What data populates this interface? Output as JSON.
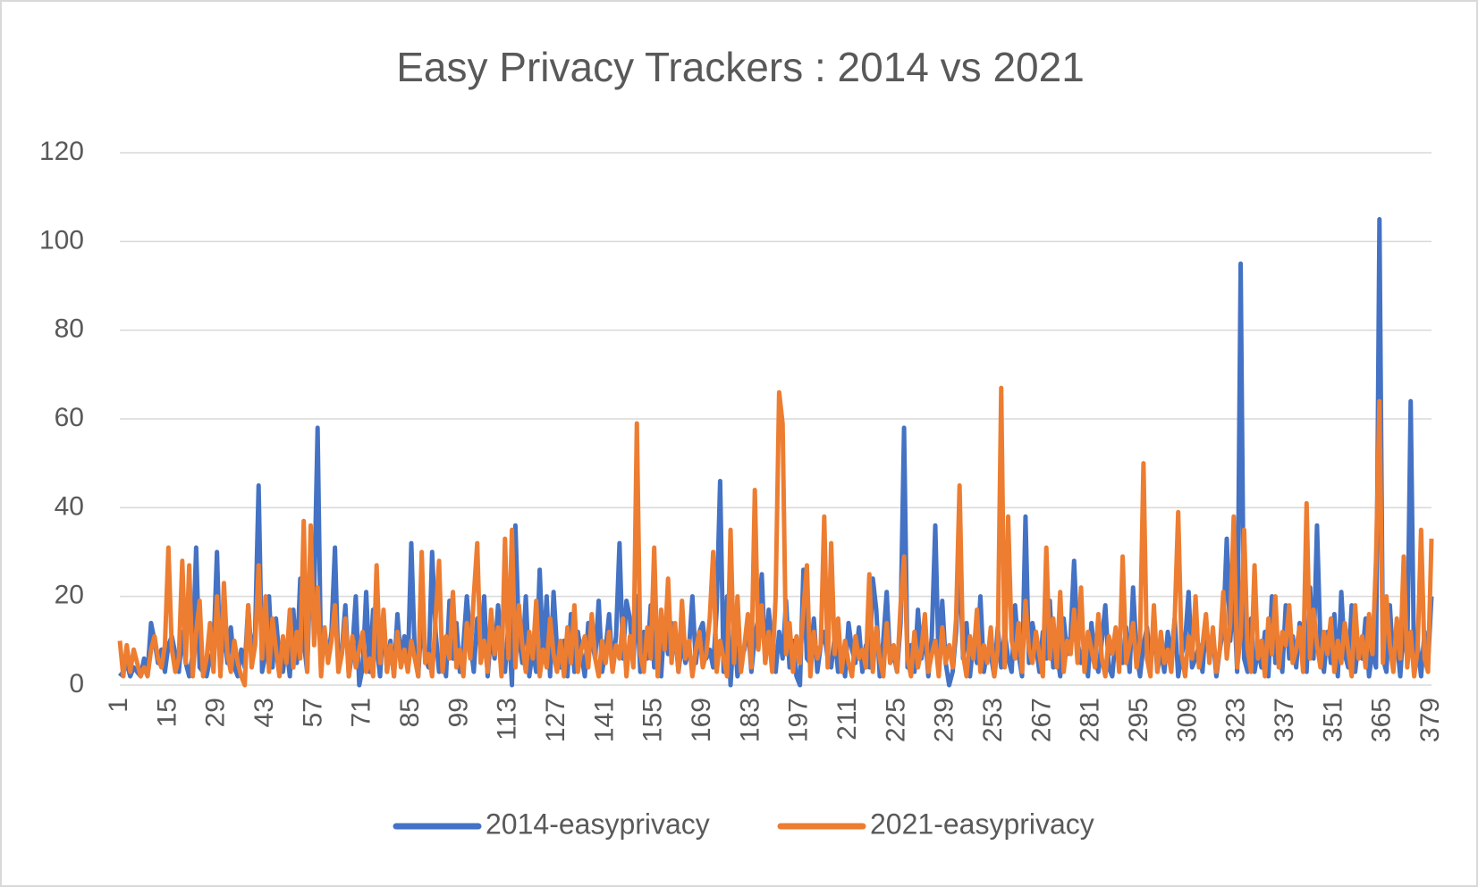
{
  "chart_data": {
    "type": "line",
    "title": "Easy Privacy Trackers : 2014 vs 2021",
    "x": [
      1,
      2,
      3,
      4,
      5,
      6,
      7,
      8,
      9,
      10,
      11,
      12,
      13,
      14,
      15,
      16,
      17,
      18,
      19,
      20,
      21,
      22,
      23,
      24,
      25,
      26,
      27,
      28,
      29,
      30,
      31,
      32,
      33,
      34,
      35,
      36,
      37,
      38,
      39,
      40,
      41,
      42,
      43,
      44,
      45,
      46,
      47,
      48,
      49,
      50,
      51,
      52,
      53,
      54,
      55,
      56,
      57,
      58,
      59,
      60,
      61,
      62,
      63,
      64,
      65,
      66,
      67,
      68,
      69,
      70,
      71,
      72,
      73,
      74,
      75,
      76,
      77,
      78,
      79,
      80,
      81,
      82,
      83,
      84,
      85,
      86,
      87,
      88,
      89,
      90,
      91,
      92,
      93,
      94,
      95,
      96,
      97,
      98,
      99,
      100,
      101,
      102,
      103,
      104,
      105,
      106,
      107,
      108,
      109,
      110,
      111,
      112,
      113,
      114,
      115,
      116,
      117,
      118,
      119,
      120,
      121,
      122,
      123,
      124,
      125,
      126,
      127,
      128,
      129,
      130,
      131,
      132,
      133,
      134,
      135,
      136,
      137,
      138,
      139,
      140,
      141,
      142,
      143,
      144,
      145,
      146,
      147,
      148,
      149,
      150,
      151,
      152,
      153,
      154,
      155,
      156,
      157,
      158,
      159,
      160,
      161,
      162,
      163,
      164,
      165,
      166,
      167,
      168,
      169,
      170,
      171,
      172,
      173,
      174,
      175,
      176,
      177,
      178,
      179,
      180,
      181,
      182,
      183,
      184,
      185,
      186,
      187,
      188,
      189,
      190,
      191,
      192,
      193,
      194,
      195,
      196,
      197,
      198,
      199,
      200,
      201,
      202,
      203,
      204,
      205,
      206,
      207,
      208,
      209,
      210,
      211,
      212,
      213,
      214,
      215,
      216,
      217,
      218,
      219,
      220,
      221,
      222,
      223,
      224,
      225,
      226,
      227,
      228,
      229,
      230,
      231,
      232,
      233,
      234,
      235,
      236,
      237,
      238,
      239,
      240,
      241,
      242,
      243,
      244,
      245,
      246,
      247,
      248,
      249,
      250,
      251,
      252,
      253,
      254,
      255,
      256,
      257,
      258,
      259,
      260,
      261,
      262,
      263,
      264,
      265,
      266,
      267,
      268,
      269,
      270,
      271,
      272,
      273,
      274,
      275,
      276,
      277,
      278,
      279,
      280,
      281,
      282,
      283,
      284,
      285,
      286,
      287,
      288,
      289,
      290,
      291,
      292,
      293,
      294,
      295,
      296,
      297,
      298,
      299,
      300,
      301,
      302,
      303,
      304,
      305,
      306,
      307,
      308,
      309,
      310,
      311,
      312,
      313,
      314,
      315,
      316,
      317,
      318,
      319,
      320,
      321,
      322,
      323,
      324,
      325,
      326,
      327,
      328,
      329,
      330,
      331,
      332,
      333,
      334,
      335,
      336,
      337,
      338,
      339,
      340,
      341,
      342,
      343,
      344,
      345,
      346,
      347,
      348,
      349,
      350,
      351,
      352,
      353,
      354,
      355,
      356,
      357,
      358,
      359,
      360,
      361,
      362,
      363,
      364,
      365,
      366,
      367,
      368,
      369,
      370,
      371,
      372,
      373,
      374,
      375,
      376,
      377,
      378,
      379
    ],
    "xlim": [
      1,
      379
    ],
    "xticks": [
      1,
      15,
      29,
      43,
      57,
      71,
      85,
      99,
      113,
      127,
      141,
      155,
      169,
      183,
      197,
      211,
      225,
      239,
      253,
      267,
      281,
      295,
      309,
      323,
      337,
      351,
      365,
      379
    ],
    "ylim": [
      0,
      120
    ],
    "yticks": [
      0,
      20,
      40,
      60,
      80,
      100,
      120
    ],
    "grid": true,
    "legend": "bottom",
    "series": [
      {
        "name": "2014-easyprivacy",
        "color": "#4472c4",
        "values": [
          2,
          3,
          5,
          2,
          4,
          3,
          2,
          6,
          3,
          14,
          10,
          5,
          8,
          3,
          9,
          11,
          7,
          3,
          12,
          5,
          2,
          7,
          31,
          4,
          3,
          2,
          6,
          8,
          30,
          3,
          14,
          5,
          13,
          4,
          2,
          8,
          4,
          18,
          6,
          12,
          45,
          3,
          7,
          20,
          4,
          15,
          6,
          3,
          9,
          2,
          17,
          5,
          24,
          10,
          3,
          28,
          20,
          58,
          4,
          12,
          6,
          12,
          31,
          3,
          8,
          18,
          2,
          8,
          20,
          0,
          4,
          21,
          3,
          17,
          9,
          2,
          16,
          3,
          10,
          2,
          16,
          5,
          11,
          4,
          32,
          7,
          2,
          16,
          6,
          4,
          30,
          12,
          3,
          8,
          2,
          19,
          6,
          14,
          3,
          9,
          20,
          10,
          3,
          15,
          8,
          20,
          2,
          12,
          6,
          18,
          9,
          3,
          14,
          0,
          36,
          11,
          5,
          20,
          2,
          8,
          3,
          26,
          6,
          20,
          2,
          21,
          8,
          4,
          10,
          2,
          16,
          3,
          12,
          7,
          2,
          14,
          10,
          6,
          19,
          3,
          8,
          16,
          4,
          11,
          32,
          6,
          19,
          15,
          5,
          20,
          3,
          12,
          6,
          18,
          4,
          9,
          2,
          15,
          7,
          14,
          12,
          3,
          10,
          5,
          8,
          20,
          5,
          12,
          14,
          6,
          8,
          4,
          17,
          46,
          3,
          20,
          0,
          13,
          2,
          6,
          8,
          14,
          3,
          11,
          15,
          25,
          5,
          17,
          9,
          3,
          12,
          6,
          19,
          4,
          10,
          2,
          0,
          26,
          6,
          5,
          15,
          3,
          9,
          12,
          6,
          4,
          11,
          3,
          7,
          2,
          14,
          8,
          5,
          13,
          3,
          9,
          4,
          24,
          17,
          2,
          10,
          21,
          5,
          7,
          3,
          14,
          58,
          4,
          9,
          3,
          17,
          6,
          12,
          2,
          11,
          36,
          4,
          19,
          5,
          0,
          3,
          12,
          29,
          6,
          14,
          2,
          10,
          5,
          20,
          3,
          8,
          7,
          2,
          13,
          4,
          12,
          6,
          3,
          18,
          7,
          2,
          38,
          5,
          14,
          9,
          3,
          12,
          6,
          19,
          4,
          8,
          2,
          15,
          7,
          11,
          28,
          10,
          5,
          9,
          2,
          14,
          6,
          3,
          10,
          18,
          4,
          2,
          11,
          8,
          5,
          13,
          3,
          22,
          7,
          2,
          9,
          13,
          5,
          14,
          3,
          8,
          3,
          12,
          6,
          15,
          2,
          7,
          10,
          21,
          4,
          6,
          9,
          3,
          14,
          6,
          11,
          2,
          8,
          13,
          33,
          10,
          21,
          3,
          95,
          6,
          3,
          15,
          3,
          8,
          4,
          12,
          2,
          20,
          5,
          9,
          3,
          18,
          6,
          11,
          4,
          14,
          7,
          3,
          22,
          6,
          36,
          9,
          3,
          12,
          5,
          16,
          2,
          21,
          7,
          4,
          18,
          3,
          10,
          6,
          15,
          2,
          8,
          4,
          105,
          6,
          3,
          18,
          5,
          10,
          2,
          14,
          6,
          64,
          3,
          9,
          2,
          12,
          5,
          20
        ]
      },
      {
        "name": "2021-easyprivacy",
        "color": "#ed7d31",
        "values": [
          10,
          2,
          9,
          3,
          8,
          5,
          2,
          4,
          2,
          8,
          11,
          6,
          4,
          9,
          31,
          8,
          3,
          6,
          28,
          5,
          27,
          2,
          12,
          19,
          2,
          6,
          14,
          3,
          20,
          2,
          23,
          7,
          3,
          10,
          5,
          2,
          0,
          18,
          4,
          9,
          27,
          6,
          20,
          3,
          15,
          8,
          2,
          11,
          5,
          17,
          4,
          12,
          6,
          37,
          3,
          36,
          9,
          22,
          2,
          13,
          5,
          10,
          18,
          3,
          7,
          15,
          2,
          11,
          4,
          8,
          12,
          3,
          6,
          2,
          27,
          5,
          17,
          3,
          9,
          2,
          12,
          4,
          8,
          3,
          10,
          6,
          2,
          30,
          5,
          7,
          2,
          15,
          28,
          3,
          11,
          6,
          21,
          4,
          8,
          2,
          14,
          6,
          20,
          32,
          5,
          10,
          3,
          17,
          7,
          13,
          2,
          33,
          6,
          35,
          4,
          18,
          9,
          3,
          12,
          6,
          19,
          2,
          8,
          4,
          15,
          7,
          3,
          10,
          2,
          13,
          5,
          18,
          3,
          8,
          11,
          4,
          16,
          6,
          2,
          10,
          5,
          12,
          3,
          9,
          6,
          15,
          2,
          11,
          4,
          59,
          7,
          3,
          13,
          6,
          31,
          2,
          17,
          8,
          24,
          5,
          14,
          3,
          19,
          6,
          10,
          2,
          8,
          12,
          4,
          7,
          15,
          30,
          3,
          10,
          6,
          2,
          35,
          5,
          20,
          3,
          9,
          16,
          4,
          44,
          8,
          18,
          5,
          12,
          3,
          20,
          66,
          59,
          7,
          14,
          3,
          11,
          5,
          17,
          27,
          2,
          12,
          6,
          9,
          38,
          4,
          32,
          7,
          15,
          3,
          10,
          5,
          2,
          11,
          6,
          8,
          4,
          25,
          3,
          13,
          6,
          2,
          14,
          5,
          9,
          3,
          18,
          29,
          6,
          2,
          12,
          4,
          8,
          16,
          3,
          7,
          10,
          2,
          13,
          5,
          9,
          4,
          15,
          45,
          7,
          2,
          11,
          6,
          17,
          3,
          9,
          5,
          13,
          2,
          8,
          67,
          4,
          38,
          10,
          6,
          14,
          3,
          19,
          8,
          5,
          12,
          7,
          2,
          31,
          6,
          15,
          4,
          21,
          3,
          10,
          7,
          17,
          5,
          22,
          3,
          12,
          8,
          4,
          16,
          6,
          2,
          11,
          7,
          13,
          3,
          29,
          5,
          9,
          14,
          4,
          10,
          50,
          6,
          2,
          18,
          3,
          12,
          5,
          8,
          3,
          15,
          39,
          7,
          2,
          11,
          6,
          20,
          4,
          9,
          16,
          5,
          13,
          3,
          8,
          21,
          6,
          14,
          38,
          4,
          11,
          35,
          8,
          3,
          27,
          6,
          10,
          2,
          15,
          7,
          20,
          4,
          12,
          9,
          18,
          5,
          8,
          13,
          3,
          41,
          6,
          17,
          9,
          4,
          12,
          7,
          15,
          3,
          10,
          5,
          14,
          8,
          2,
          18,
          6,
          11,
          4,
          16,
          7,
          28,
          64,
          5,
          20,
          9,
          3,
          15,
          6,
          29,
          4,
          12,
          2,
          8,
          35,
          6,
          3,
          33
        ]
      }
    ]
  }
}
